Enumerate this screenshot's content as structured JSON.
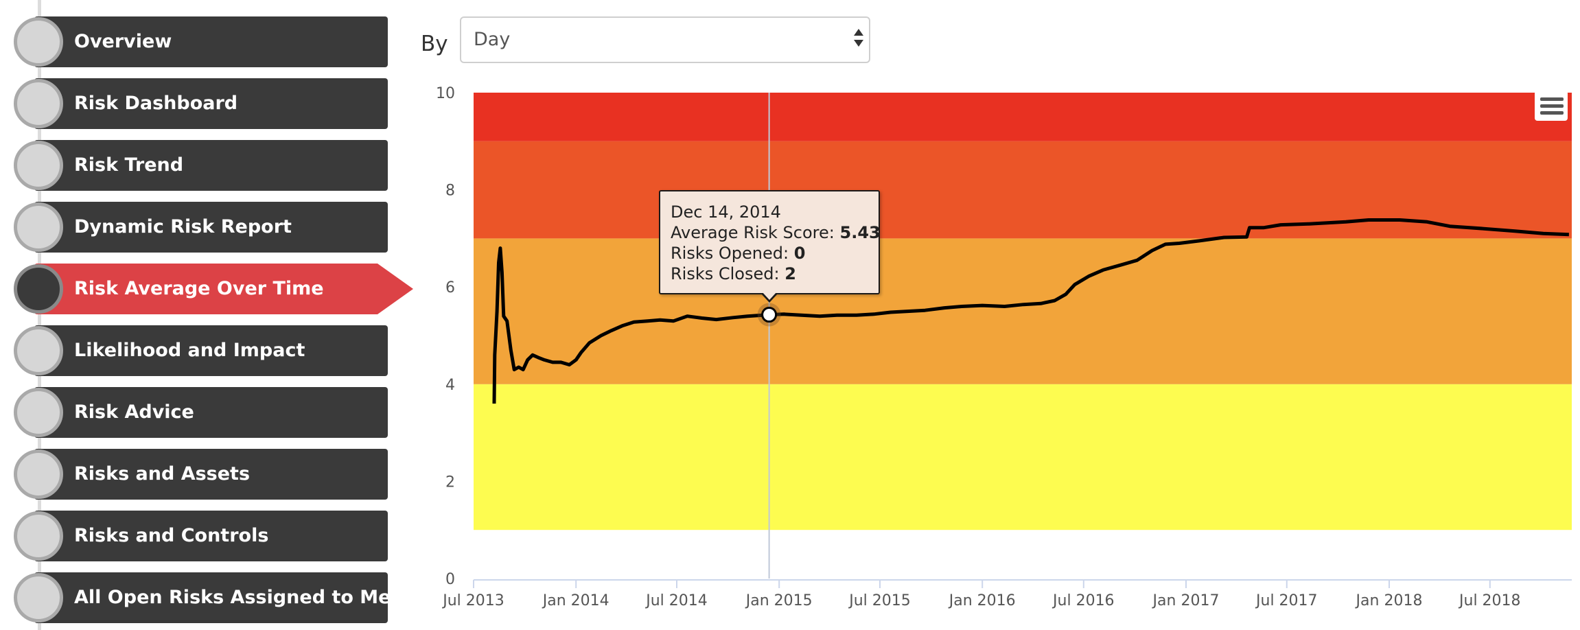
{
  "sidebar": {
    "items": [
      {
        "label": "Overview",
        "active": false
      },
      {
        "label": "Risk Dashboard",
        "active": false
      },
      {
        "label": "Risk Trend",
        "active": false
      },
      {
        "label": "Dynamic Risk Report",
        "active": false
      },
      {
        "label": "Risk Average Over Time",
        "active": true
      },
      {
        "label": "Likelihood and Impact",
        "active": false
      },
      {
        "label": "Risk Advice",
        "active": false
      },
      {
        "label": "Risks and Assets",
        "active": false
      },
      {
        "label": "Risks and Controls",
        "active": false
      },
      {
        "label": "All Open Risks Assigned to Me",
        "active": false
      }
    ]
  },
  "filter": {
    "by_label": "By",
    "selected": "Day"
  },
  "tooltip": {
    "date": "Dec 14, 2014",
    "avg_label": "Average Risk Score: ",
    "avg_value": "5.43",
    "opened_label": "Risks Opened: ",
    "opened_value": "0",
    "closed_label": "Risks Closed: ",
    "closed_value": "2"
  },
  "colors": {
    "sidebar_item": "#3a3a3a",
    "sidebar_active": "#dc4246",
    "band_yellow": "#fdfc50",
    "band_orange": "#f2a43a",
    "band_dark_orange": "#eb5528",
    "band_red": "#e83122",
    "line": "#000000",
    "tooltip_bg": "#f5e6dc"
  },
  "chart_data": {
    "type": "line",
    "title": "",
    "xlabel": "",
    "ylabel": "",
    "ylim": [
      0,
      10
    ],
    "yticks": [
      "0",
      "2",
      "4",
      "6",
      "8",
      "10"
    ],
    "xlim": [
      "2013-07-01",
      "2018-11-25"
    ],
    "xticks": [
      {
        "label": "Jul 2013",
        "date": "2013-07-01"
      },
      {
        "label": "Jan 2014",
        "date": "2014-01-01"
      },
      {
        "label": "Jul 2014",
        "date": "2014-07-01"
      },
      {
        "label": "Jan 2015",
        "date": "2015-01-01"
      },
      {
        "label": "Jul 2015",
        "date": "2015-07-01"
      },
      {
        "label": "Jan 2016",
        "date": "2016-01-01"
      },
      {
        "label": "Jul 2016",
        "date": "2016-07-01"
      },
      {
        "label": "Jan 2017",
        "date": "2017-01-01"
      },
      {
        "label": "Jul 2017",
        "date": "2017-07-01"
      },
      {
        "label": "Jan 2018",
        "date": "2018-01-01"
      },
      {
        "label": "Jul 2018",
        "date": "2018-07-01"
      }
    ],
    "bands": [
      {
        "from": 1,
        "to": 4,
        "color": "#fdfc50"
      },
      {
        "from": 4,
        "to": 7,
        "color": "#f2a43a"
      },
      {
        "from": 7,
        "to": 9,
        "color": "#eb5528"
      },
      {
        "from": 9,
        "to": 10,
        "color": "#e83122"
      }
    ],
    "series": [
      {
        "values": [
          [
            "2013-08-07",
            3.6
          ],
          [
            "2013-08-08",
            4.6
          ],
          [
            "2013-08-12",
            5.5
          ],
          [
            "2013-08-15",
            6.5
          ],
          [
            "2013-08-18",
            6.8
          ],
          [
            "2013-08-21",
            6.3
          ],
          [
            "2013-08-24",
            5.4
          ],
          [
            "2013-08-30",
            5.3
          ],
          [
            "2013-09-06",
            4.7
          ],
          [
            "2013-09-12",
            4.3
          ],
          [
            "2013-09-20",
            4.35
          ],
          [
            "2013-09-28",
            4.3
          ],
          [
            "2013-10-06",
            4.5
          ],
          [
            "2013-10-15",
            4.6
          ],
          [
            "2013-10-25",
            4.55
          ],
          [
            "2013-11-05",
            4.5
          ],
          [
            "2013-11-20",
            4.45
          ],
          [
            "2013-12-05",
            4.45
          ],
          [
            "2013-12-20",
            4.4
          ],
          [
            "2014-01-01",
            4.5
          ],
          [
            "2014-01-10",
            4.65
          ],
          [
            "2014-01-25",
            4.85
          ],
          [
            "2014-02-15",
            5.0
          ],
          [
            "2014-03-05",
            5.1
          ],
          [
            "2014-03-25",
            5.2
          ],
          [
            "2014-04-15",
            5.28
          ],
          [
            "2014-05-10",
            5.3
          ],
          [
            "2014-06-01",
            5.32
          ],
          [
            "2014-06-25",
            5.3
          ],
          [
            "2014-07-20",
            5.4
          ],
          [
            "2014-08-15",
            5.36
          ],
          [
            "2014-09-10",
            5.33
          ],
          [
            "2014-10-10",
            5.37
          ],
          [
            "2014-11-05",
            5.4
          ],
          [
            "2014-12-14",
            5.43
          ],
          [
            "2015-01-10",
            5.44
          ],
          [
            "2015-02-10",
            5.42
          ],
          [
            "2015-03-15",
            5.4
          ],
          [
            "2015-04-15",
            5.42
          ],
          [
            "2015-05-20",
            5.42
          ],
          [
            "2015-06-20",
            5.44
          ],
          [
            "2015-07-20",
            5.48
          ],
          [
            "2015-08-20",
            5.5
          ],
          [
            "2015-09-20",
            5.52
          ],
          [
            "2015-10-25",
            5.57
          ],
          [
            "2015-11-25",
            5.6
          ],
          [
            "2016-01-01",
            5.62
          ],
          [
            "2016-02-10",
            5.6
          ],
          [
            "2016-03-15",
            5.64
          ],
          [
            "2016-04-15",
            5.66
          ],
          [
            "2016-05-10",
            5.72
          ],
          [
            "2016-05-30",
            5.85
          ],
          [
            "2016-06-15",
            6.05
          ],
          [
            "2016-07-10",
            6.22
          ],
          [
            "2016-08-05",
            6.35
          ],
          [
            "2016-09-05",
            6.45
          ],
          [
            "2016-10-05",
            6.55
          ],
          [
            "2016-11-01",
            6.75
          ],
          [
            "2016-11-25",
            6.88
          ],
          [
            "2016-12-20",
            6.9
          ],
          [
            "2017-01-25",
            6.95
          ],
          [
            "2017-03-10",
            7.02
          ],
          [
            "2017-04-20",
            7.03
          ],
          [
            "2017-04-25",
            7.22
          ],
          [
            "2017-05-20",
            7.22
          ],
          [
            "2017-06-20",
            7.28
          ],
          [
            "2017-08-10",
            7.3
          ],
          [
            "2017-10-15",
            7.34
          ],
          [
            "2017-11-25",
            7.38
          ],
          [
            "2018-01-20",
            7.38
          ],
          [
            "2018-03-10",
            7.34
          ],
          [
            "2018-04-20",
            7.25
          ],
          [
            "2018-06-20",
            7.2
          ],
          [
            "2018-08-15",
            7.15
          ],
          [
            "2018-10-05",
            7.1
          ],
          [
            "2018-11-20",
            7.08
          ]
        ]
      }
    ],
    "highlight": {
      "date": "2014-12-14",
      "value": 5.43
    },
    "grid": false,
    "legend": "none"
  }
}
